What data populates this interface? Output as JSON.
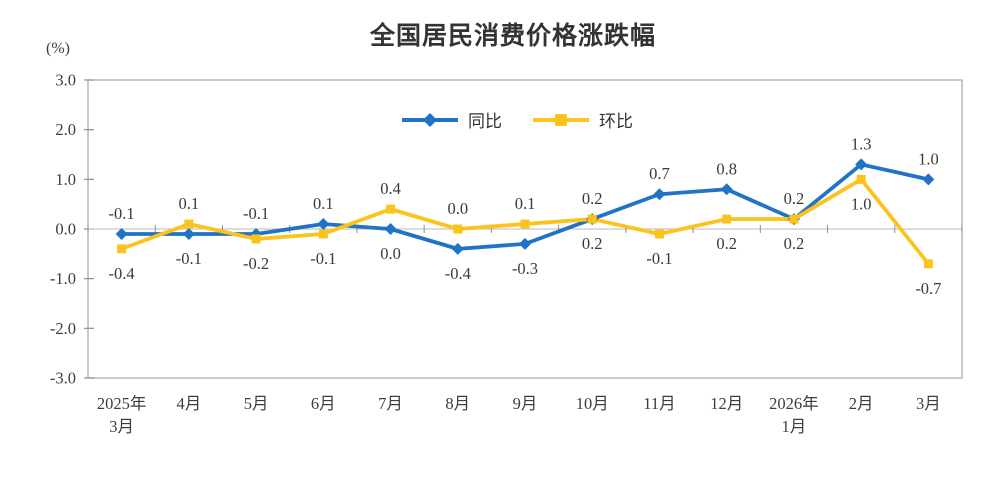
{
  "chart": {
    "title": "全国居民消费价格涨跌幅",
    "unit_label": "(%)"
  },
  "colors": {
    "yoy_blue": "#2173C6",
    "mom_yellow": "#FBC31D",
    "plot_border": "#A6A6A6",
    "axis_tick": "#8F8F8F",
    "zero_line": "#C8C8C8",
    "label_text": "#3A3A3A",
    "tick_text": "#3D3D3D"
  },
  "chart_data": {
    "type": "line",
    "title": "全国居民消费价格涨跌幅",
    "ylabel": "(%)",
    "xlabel": "",
    "grid": false,
    "legend_position": "top-center-inside",
    "ylim": [
      -3.0,
      3.0
    ],
    "y_ticks": [
      "3.0",
      "2.0",
      "1.0",
      "0.0",
      "-1.0",
      "-2.0",
      "-3.0"
    ],
    "categories": [
      "2025年\n3月",
      "4月",
      "5月",
      "6月",
      "7月",
      "8月",
      "9月",
      "10月",
      "11月",
      "12月",
      "2026年\n1月",
      "2月",
      "3月"
    ],
    "series": [
      {
        "name": "同比",
        "marker": "diamond",
        "color": "#2173C6",
        "values": [
          -0.1,
          -0.1,
          -0.1,
          0.1,
          0.0,
          -0.4,
          -0.3,
          0.2,
          0.7,
          0.8,
          0.2,
          1.3,
          1.0
        ],
        "label_positions": [
          "above",
          "below",
          "above",
          "above",
          "below",
          "below",
          "below",
          "below",
          "above",
          "above",
          "above",
          "above",
          "above"
        ]
      },
      {
        "name": "环比",
        "marker": "square",
        "color": "#FBC31D",
        "values": [
          -0.4,
          0.1,
          -0.2,
          -0.1,
          0.4,
          0.0,
          0.1,
          0.2,
          -0.1,
          0.2,
          0.2,
          1.0,
          -0.7
        ],
        "label_positions": [
          "below",
          "above",
          "below",
          "below",
          "above",
          "above",
          "above",
          "above",
          "below",
          "below",
          "below",
          "below",
          "below"
        ]
      }
    ]
  }
}
